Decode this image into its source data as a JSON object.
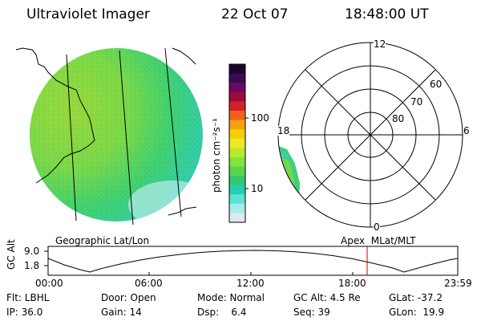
{
  "header": {
    "instrument": "Ultraviolet Imager",
    "date": "22 Oct 07",
    "time": "18:48:00 UT"
  },
  "colorbar": {
    "unit": "photon cm⁻²s⁻¹",
    "ticks": [
      "100",
      "10"
    ],
    "colors": [
      "#1a0730",
      "#3a0b55",
      "#6a0a5e",
      "#9e0a3c",
      "#d1212a",
      "#f0621c",
      "#f6a00f",
      "#f5ce08",
      "#eaea20",
      "#b8e92e",
      "#86e23c",
      "#56d54e",
      "#34c771",
      "#28cdb0",
      "#5ce2d6",
      "#a6ece9",
      "#dde9ee"
    ]
  },
  "left_panel": {
    "label": "Geographic Lat/Lon"
  },
  "right_panel": {
    "label": "Apex  MLat/MLT",
    "clock_labels": {
      "top": "12",
      "left": "18",
      "right": "6",
      "bottom": "0"
    },
    "ring_labels": [
      "60",
      "70",
      "80"
    ]
  },
  "altitude_plot": {
    "ylabel": "GC Alt",
    "yticks": [
      "9.0",
      "1.8"
    ],
    "xticks": [
      "00:00",
      "06:00",
      "12:00",
      "18:00",
      "23:59"
    ],
    "marker_color": "#c00000"
  },
  "footer": {
    "row1": {
      "flt": "Flt: LBHL",
      "door": "Door: Open",
      "mode": "Mode: Normal",
      "gcalt": "GC Alt: 4.5 Re",
      "glat": "GLat: -37.2"
    },
    "row2": {
      "ip": "IP: 36.0",
      "gain": "Gain: 14",
      "dsp": "Dsp:    6.4",
      "seq": "Seq: 39",
      "glon": "GLon:  19.9"
    }
  }
}
